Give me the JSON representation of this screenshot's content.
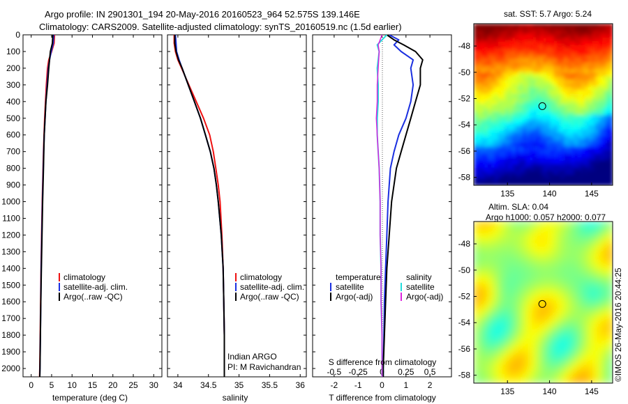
{
  "header": {
    "line1": "Argo profile: IN 2901301_194 20-May-2016 20160523_964 52.575S 139.146E",
    "line2": "Climatology: CARS2009. Satellite-adjusted climatology: synTS_20160519.nc (1.5d earlier)"
  },
  "depth_ticks": [
    "0",
    "100",
    "200",
    "300",
    "400",
    "500",
    "600",
    "700",
    "800",
    "900",
    "1000",
    "1100",
    "1200",
    "1300",
    "1400",
    "1500",
    "1600",
    "1700",
    "1800",
    "1900",
    "2000"
  ],
  "colors": {
    "climatology": "#ee1111",
    "satellite": "#1a2fe0",
    "argo": "#000000",
    "satellite_salinity": "#22dddd",
    "argo_salinity": "#dd22dd"
  },
  "chart_data": [
    {
      "type": "line",
      "id": "temperature",
      "xlabel": "temperature (deg C)",
      "xticks": [
        "0",
        "5",
        "10",
        "15",
        "20",
        "25",
        "30"
      ],
      "xlim": [
        -2,
        32
      ],
      "ylim": [
        2050,
        0
      ],
      "legend": [
        "climatology",
        "satellite-adj. clim.",
        "Argo(..raw -QC)"
      ],
      "series": [
        {
          "name": "climatology",
          "depth": [
            0,
            50,
            100,
            150,
            200,
            300,
            400,
            500,
            600,
            700,
            800,
            900,
            1000,
            1200,
            1400,
            1600,
            1800,
            2000,
            2050
          ],
          "values": [
            5.7,
            5.6,
            5.0,
            4.3,
            4.0,
            3.7,
            3.5,
            3.3,
            3.15,
            3.0,
            2.9,
            2.8,
            2.7,
            2.55,
            2.4,
            2.3,
            2.2,
            2.1,
            2.05
          ]
        },
        {
          "name": "satellite-adj. clim.",
          "depth": [
            0,
            50,
            100,
            150,
            200,
            300,
            400,
            500,
            600,
            700,
            800,
            900,
            1000,
            1200,
            1400,
            1600,
            1800,
            2000,
            2050
          ],
          "values": [
            5.5,
            5.4,
            4.9,
            4.5,
            4.2,
            3.9,
            3.6,
            3.4,
            3.2,
            3.05,
            2.95,
            2.85,
            2.75,
            2.6,
            2.45,
            2.35,
            2.25,
            2.15,
            2.1
          ]
        },
        {
          "name": "Argo(..raw -QC)",
          "depth": [
            0,
            50,
            100,
            150,
            200,
            300,
            400,
            500,
            600,
            700,
            800,
            900,
            1000,
            1200,
            1400,
            1600,
            1800,
            2000,
            2050
          ],
          "values": [
            5.3,
            5.2,
            4.7,
            4.5,
            4.3,
            4.0,
            3.6,
            3.4,
            3.2,
            3.1,
            3.0,
            2.9,
            2.8,
            2.65,
            2.5,
            2.35,
            2.25,
            2.15,
            2.1
          ]
        }
      ]
    },
    {
      "type": "line",
      "id": "salinity",
      "xlabel": "salinity",
      "xticks": [
        "34",
        "34.5",
        "35",
        "35.5",
        "36"
      ],
      "xlim": [
        33.83,
        36.1
      ],
      "ylim": [
        2050,
        0
      ],
      "legend": [
        "climatology",
        "satellite-adj. clim.",
        "Argo(..raw -QC)"
      ],
      "annotation": [
        "Indian ARGO",
        "PI: M Ravichandran"
      ],
      "series": [
        {
          "name": "climatology",
          "depth": [
            0,
            50,
            100,
            150,
            200,
            300,
            400,
            500,
            600,
            700,
            800,
            900,
            1000,
            1200,
            1400,
            1600,
            1800,
            2000,
            2050
          ],
          "values": [
            33.94,
            33.94,
            33.96,
            34.0,
            34.06,
            34.18,
            34.3,
            34.42,
            34.52,
            34.58,
            34.62,
            34.66,
            34.69,
            34.72,
            34.74,
            34.75,
            34.76,
            34.76,
            34.76
          ]
        },
        {
          "name": "satellite-adj. clim.",
          "depth": [
            0,
            50,
            100,
            150,
            200,
            300,
            400,
            500,
            600,
            700,
            800,
            900,
            1000,
            1200,
            1400,
            1600,
            1800,
            2000,
            2050
          ],
          "values": [
            33.96,
            33.97,
            33.98,
            34.02,
            34.07,
            34.17,
            34.27,
            34.37,
            34.45,
            34.53,
            34.59,
            34.63,
            34.66,
            34.71,
            34.74,
            34.75,
            34.76,
            34.76,
            34.76
          ]
        },
        {
          "name": "Argo(..raw -QC)",
          "depth": [
            0,
            50,
            100,
            150,
            200,
            300,
            400,
            500,
            600,
            700,
            800,
            900,
            1000,
            1200,
            1400,
            1600,
            1800,
            2000,
            2050
          ],
          "values": [
            33.95,
            33.95,
            33.97,
            34.01,
            34.07,
            34.17,
            34.27,
            34.37,
            34.45,
            34.53,
            34.59,
            34.63,
            34.66,
            34.71,
            34.74,
            34.75,
            34.76,
            34.76,
            34.76
          ]
        }
      ]
    },
    {
      "type": "line",
      "id": "difference",
      "xlabel": "T difference from climatology",
      "top_label": "S difference from climatology",
      "xticks_T": [
        "-2",
        "-1",
        "0",
        "1",
        "2"
      ],
      "xticks_S": [
        "-0.5",
        "-0.25",
        "0",
        "0.25",
        "0.5"
      ],
      "xlim": [
        -2.9,
        2.9
      ],
      "ylim": [
        2050,
        0
      ],
      "legend_temperature": [
        "temperature",
        "satellite",
        "Argo(-adj)"
      ],
      "legend_salinity": [
        "salinity",
        "satellite",
        "Argo(-adj)"
      ],
      "series": [
        {
          "name": "temperature satellite",
          "depth": [
            0,
            30,
            60,
            100,
            150,
            200,
            300,
            400,
            500,
            600,
            700,
            800,
            1000,
            1200,
            1400,
            1600,
            1800,
            2000,
            2050
          ],
          "values": [
            0.3,
            0.7,
            0.5,
            0.8,
            1.3,
            1.2,
            1.3,
            1.2,
            1.0,
            0.7,
            0.5,
            0.35,
            0.25,
            0.2,
            0.15,
            0.1,
            0.08,
            0.05,
            0.05
          ]
        },
        {
          "name": "temperature Argo(-adj)",
          "depth": [
            0,
            30,
            60,
            100,
            150,
            200,
            300,
            400,
            500,
            600,
            700,
            800,
            1000,
            1200,
            1400,
            1600,
            1800,
            2000,
            2050
          ],
          "values": [
            0.2,
            0.5,
            0.9,
            1.4,
            1.7,
            1.6,
            1.6,
            1.4,
            1.2,
            1.0,
            0.8,
            0.6,
            0.4,
            0.3,
            0.2,
            0.15,
            0.1,
            0.05,
            0.05
          ]
        },
        {
          "name": "salinity satellite",
          "depth": [
            0,
            30,
            60,
            100,
            200,
            300,
            400,
            500,
            600,
            700,
            800,
            1000,
            1200,
            1400,
            1600,
            1800,
            2000,
            2050
          ],
          "values": [
            0.05,
            0.0,
            -0.05,
            -0.03,
            -0.05,
            -0.04,
            -0.04,
            -0.05,
            -0.05,
            -0.04,
            -0.03,
            -0.02,
            -0.02,
            -0.01,
            -0.01,
            0.0,
            0.0,
            0.0
          ]
        },
        {
          "name": "salinity Argo(-adj)",
          "depth": [
            0,
            30,
            60,
            100,
            200,
            300,
            400,
            500,
            600,
            700,
            800,
            1000,
            1200,
            1400,
            1600,
            1800,
            2000,
            2050
          ],
          "values": [
            0.0,
            -0.02,
            -0.04,
            -0.03,
            -0.04,
            -0.05,
            -0.05,
            -0.06,
            -0.05,
            -0.04,
            -0.03,
            -0.02,
            -0.02,
            -0.01,
            -0.01,
            0.0,
            0.0,
            0.0
          ]
        }
      ]
    },
    {
      "type": "heatmap",
      "id": "sst-map",
      "title": "sat. SST: 5.7 Argo: 5.24",
      "xticks": [
        "135",
        "140",
        "145"
      ],
      "yticks": [
        "-48",
        "-50",
        "-52",
        "-54",
        "-56",
        "-58"
      ],
      "xlim": [
        131,
        147.5
      ],
      "ylim": [
        -58.6,
        -46.3
      ],
      "marker": [
        139.146,
        -52.575
      ]
    },
    {
      "type": "heatmap",
      "id": "sla-map",
      "title_line1": "Altim. SLA: 0.04",
      "title_line2": "Argo h1000: 0.057 h2000: 0.077",
      "xticks": [
        "135",
        "140",
        "145"
      ],
      "yticks": [
        "-48",
        "-50",
        "-52",
        "-54",
        "-56",
        "-58"
      ],
      "xlim": [
        131,
        147.5
      ],
      "ylim": [
        -58.6,
        -46.3
      ],
      "marker": [
        139.146,
        -52.575
      ]
    }
  ],
  "footer": {
    "credit": "©IMOS 26-May-2016 20:44:25"
  }
}
